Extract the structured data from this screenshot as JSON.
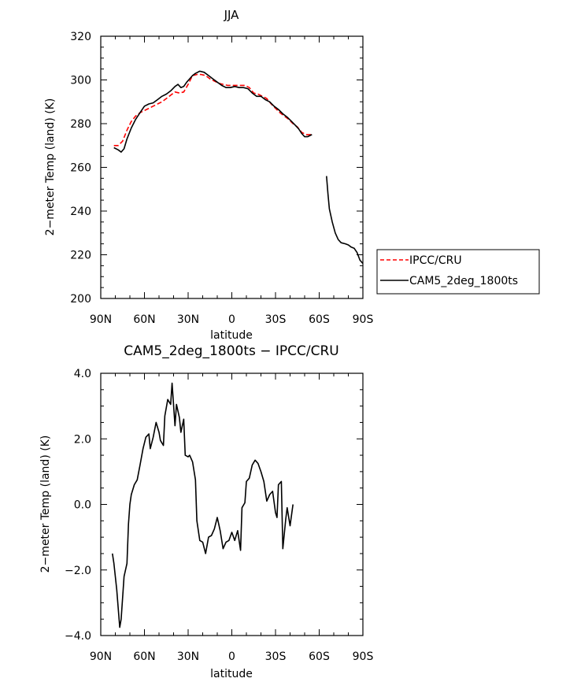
{
  "chart_data": [
    {
      "type": "line",
      "title": "JJA",
      "xlabel": "latitude",
      "ylabel": "2−meter Temp (land) (K)",
      "xlim": [
        90,
        -90
      ],
      "ylim": [
        200,
        320
      ],
      "x_ticks": [
        "90N",
        "60N",
        "30N",
        "0",
        "30S",
        "60S",
        "90S"
      ],
      "y_ticks": [
        "200",
        "220",
        "240",
        "260",
        "280",
        "300",
        "320"
      ],
      "legend_position": "right",
      "series": [
        {
          "name": "IPCC/CRU",
          "color": "#ff0000",
          "dash": "dashed",
          "segments": [
            [
              [
                81,
                270
              ],
              [
                78,
                270
              ],
              [
                75,
                272
              ],
              [
                72,
                277
              ],
              [
                69,
                281
              ],
              [
                66,
                283.5
              ],
              [
                63,
                285
              ],
              [
                60,
                286
              ],
              [
                57,
                287
              ],
              [
                54,
                288
              ],
              [
                51,
                289
              ],
              [
                48,
                290
              ],
              [
                45,
                291.5
              ],
              [
                42,
                293
              ],
              [
                39,
                294.5
              ],
              [
                36,
                294
              ],
              [
                33,
                294.5
              ],
              [
                30,
                298
              ],
              [
                27,
                302
              ],
              [
                24,
                302.5
              ],
              [
                21,
                302.5
              ],
              [
                18,
                302
              ],
              [
                15,
                300.5
              ],
              [
                12,
                299.5
              ],
              [
                9,
                298.5
              ],
              [
                6,
                298
              ],
              [
                3,
                297.5
              ],
              [
                0,
                297.5
              ],
              [
                -3,
                297.5
              ],
              [
                -6,
                297.5
              ],
              [
                -9,
                297.5
              ],
              [
                -12,
                296.5
              ],
              [
                -15,
                294
              ],
              [
                -18,
                293.5
              ],
              [
                -21,
                292.5
              ],
              [
                -24,
                291.5
              ],
              [
                -27,
                289
              ],
              [
                -30,
                287
              ],
              [
                -33,
                285
              ],
              [
                -36,
                283.5
              ],
              [
                -39,
                282
              ],
              [
                -42,
                280
              ],
              [
                -45,
                278.5
              ],
              [
                -48,
                276
              ],
              [
                -51,
                275
              ],
              [
                -54,
                275
              ],
              [
                -55,
                274.5
              ]
            ]
          ]
        },
        {
          "name": "CAM5_2deg_1800ts",
          "color": "#000000",
          "dash": "solid",
          "segments": [
            [
              [
                81,
                269
              ],
              [
                78,
                268
              ],
              [
                76,
                267
              ],
              [
                74,
                268.5
              ],
              [
                72,
                273
              ],
              [
                69,
                278
              ],
              [
                66,
                282
              ],
              [
                63,
                285
              ],
              [
                60,
                288
              ],
              [
                57,
                289
              ],
              [
                54,
                289.5
              ],
              [
                51,
                291
              ],
              [
                48,
                292.5
              ],
              [
                45,
                293.5
              ],
              [
                42,
                295
              ],
              [
                39,
                297
              ],
              [
                37,
                298
              ],
              [
                35,
                296.5
              ],
              [
                33,
                297
              ],
              [
                31,
                299
              ],
              [
                29,
                300.5
              ],
              [
                27,
                302
              ],
              [
                25,
                303
              ],
              [
                22,
                304
              ],
              [
                19,
                303.5
              ],
              [
                16,
                302
              ],
              [
                13,
                300.5
              ],
              [
                10,
                299
              ],
              [
                7,
                297.5
              ],
              [
                4,
                296.5
              ],
              [
                1,
                296.5
              ],
              [
                -2,
                297
              ],
              [
                -5,
                296.5
              ],
              [
                -8,
                296.5
              ],
              [
                -11,
                296
              ],
              [
                -14,
                294
              ],
              [
                -17,
                292.5
              ],
              [
                -20,
                292.5
              ],
              [
                -23,
                291
              ],
              [
                -26,
                290
              ],
              [
                -29,
                288
              ],
              [
                -32,
                286.5
              ],
              [
                -35,
                284.5
              ],
              [
                -38,
                283
              ],
              [
                -41,
                281
              ],
              [
                -44,
                279
              ],
              [
                -46,
                277.5
              ],
              [
                -48,
                275.5
              ],
              [
                -50,
                274
              ],
              [
                -52,
                274
              ],
              [
                -55,
                275
              ]
            ],
            [
              [
                -65,
                256
              ],
              [
                -66,
                248
              ],
              [
                -67,
                241
              ],
              [
                -69,
                235
              ],
              [
                -71,
                230
              ],
              [
                -73,
                227
              ],
              [
                -75,
                225.5
              ],
              [
                -78,
                225
              ],
              [
                -80,
                224.5
              ],
              [
                -82,
                223.5
              ],
              [
                -84,
                223
              ],
              [
                -86,
                221
              ],
              [
                -88,
                217.5
              ],
              [
                -90,
                216
              ]
            ]
          ]
        }
      ]
    },
    {
      "type": "line",
      "title": "CAM5_2deg_1800ts − IPCC/CRU",
      "xlabel": "latitude",
      "ylabel": "2−meter Temp (land) (K)",
      "xlim": [
        90,
        -90
      ],
      "ylim": [
        -4,
        4
      ],
      "x_ticks": [
        "90N",
        "60N",
        "30N",
        "0",
        "30S",
        "60S",
        "90S"
      ],
      "y_ticks": [
        "−4.0",
        "−2.0",
        "0.0",
        "2.0",
        "4.0"
      ],
      "series": [
        {
          "color": "#000000",
          "dash": "solid",
          "segments": [
            [
              [
                82,
                -1.5
              ],
              [
                81,
                -1.8
              ],
              [
                79,
                -2.6
              ],
              [
                77,
                -3.75
              ],
              [
                76,
                -3.5
              ],
              [
                74,
                -2.2
              ],
              [
                72,
                -1.8
              ],
              [
                71,
                -0.6
              ],
              [
                70,
                0.0
              ],
              [
                69,
                0.3
              ],
              [
                67,
                0.6
              ],
              [
                65,
                0.75
              ],
              [
                63,
                1.2
              ],
              [
                61,
                1.7
              ],
              [
                59,
                2.05
              ],
              [
                57,
                2.15
              ],
              [
                56,
                1.7
              ],
              [
                54,
                2.05
              ],
              [
                52,
                2.5
              ],
              [
                50,
                2.2
              ],
              [
                49,
                1.95
              ],
              [
                47,
                1.8
              ],
              [
                46,
                2.7
              ],
              [
                44,
                3.2
              ],
              [
                42,
                3.05
              ],
              [
                41,
                3.7
              ],
              [
                39,
                2.4
              ],
              [
                38,
                3.05
              ],
              [
                36,
                2.65
              ],
              [
                35,
                2.2
              ],
              [
                33,
                2.6
              ],
              [
                32,
                1.5
              ],
              [
                30,
                1.45
              ],
              [
                29,
                1.5
              ],
              [
                27,
                1.3
              ],
              [
                25,
                0.75
              ],
              [
                24,
                -0.5
              ],
              [
                22,
                -1.1
              ],
              [
                20,
                -1.15
              ],
              [
                18,
                -1.5
              ],
              [
                16,
                -1.0
              ],
              [
                14,
                -0.95
              ],
              [
                12,
                -0.75
              ],
              [
                10,
                -0.4
              ],
              [
                8,
                -0.8
              ],
              [
                6,
                -1.35
              ],
              [
                4,
                -1.15
              ],
              [
                2,
                -1.1
              ],
              [
                0,
                -0.85
              ],
              [
                -2,
                -1.1
              ],
              [
                -4,
                -0.8
              ],
              [
                -6,
                -1.4
              ],
              [
                -7,
                -0.1
              ],
              [
                -9,
                0.05
              ],
              [
                -10,
                0.7
              ],
              [
                -12,
                0.8
              ],
              [
                -14,
                1.2
              ],
              [
                -16,
                1.35
              ],
              [
                -18,
                1.25
              ],
              [
                -20,
                1.0
              ],
              [
                -22,
                0.7
              ],
              [
                -24,
                0.1
              ],
              [
                -26,
                0.3
              ],
              [
                -28,
                0.4
              ],
              [
                -30,
                -0.25
              ],
              [
                -31,
                -0.4
              ],
              [
                -32,
                0.6
              ],
              [
                -34,
                0.7
              ],
              [
                -35,
                -1.35
              ],
              [
                -37,
                -0.45
              ],
              [
                -38,
                -0.1
              ],
              [
                -40,
                -0.65
              ],
              [
                -42,
                0.0
              ]
            ]
          ]
        }
      ]
    }
  ]
}
